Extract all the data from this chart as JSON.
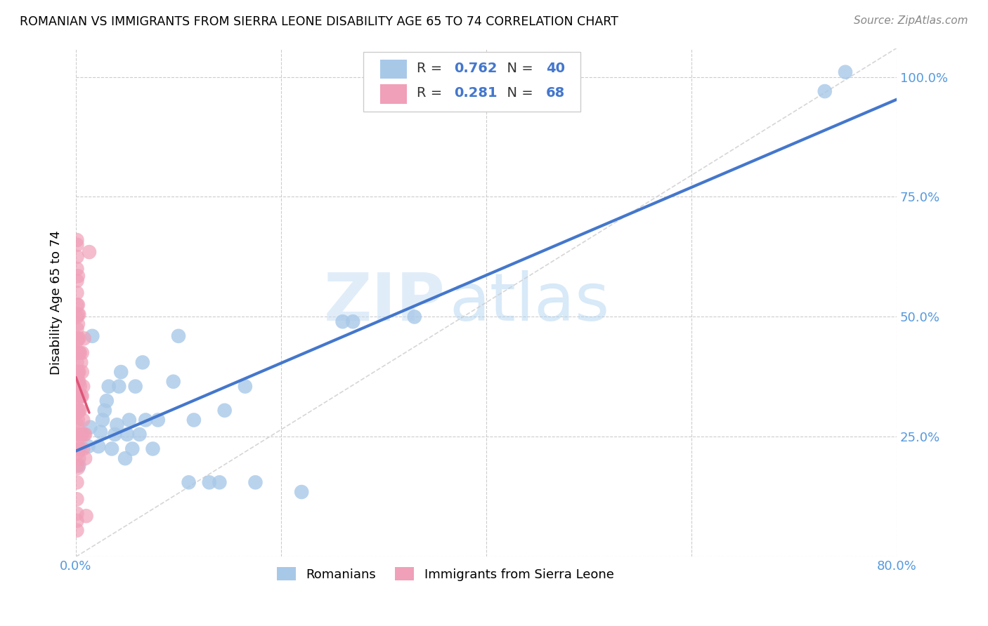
{
  "title": "ROMANIAN VS IMMIGRANTS FROM SIERRA LEONE DISABILITY AGE 65 TO 74 CORRELATION CHART",
  "source": "Source: ZipAtlas.com",
  "ylabel": "Disability Age 65 to 74",
  "xlim": [
    0.0,
    0.8
  ],
  "ylim": [
    0.0,
    1.06
  ],
  "blue_color": "#a8c8e8",
  "blue_line_color": "#4477cc",
  "pink_color": "#f0a0b8",
  "pink_line_color": "#dd5577",
  "blue_R": 0.762,
  "blue_N": 40,
  "pink_R": 0.281,
  "pink_N": 68,
  "watermark_zip": "ZIP",
  "watermark_atlas": "atlas",
  "legend_label_blue": "Romanians",
  "legend_label_pink": "Immigrants from Sierra Leone",
  "blue_points": [
    [
      0.003,
      0.19
    ],
    [
      0.012,
      0.23
    ],
    [
      0.014,
      0.27
    ],
    [
      0.016,
      0.46
    ],
    [
      0.022,
      0.23
    ],
    [
      0.024,
      0.26
    ],
    [
      0.026,
      0.285
    ],
    [
      0.028,
      0.305
    ],
    [
      0.03,
      0.325
    ],
    [
      0.032,
      0.355
    ],
    [
      0.035,
      0.225
    ],
    [
      0.038,
      0.255
    ],
    [
      0.04,
      0.275
    ],
    [
      0.042,
      0.355
    ],
    [
      0.044,
      0.385
    ],
    [
      0.048,
      0.205
    ],
    [
      0.05,
      0.255
    ],
    [
      0.052,
      0.285
    ],
    [
      0.055,
      0.225
    ],
    [
      0.058,
      0.355
    ],
    [
      0.062,
      0.255
    ],
    [
      0.065,
      0.405
    ],
    [
      0.068,
      0.285
    ],
    [
      0.075,
      0.225
    ],
    [
      0.08,
      0.285
    ],
    [
      0.095,
      0.365
    ],
    [
      0.1,
      0.46
    ],
    [
      0.11,
      0.155
    ],
    [
      0.115,
      0.285
    ],
    [
      0.13,
      0.155
    ],
    [
      0.14,
      0.155
    ],
    [
      0.145,
      0.305
    ],
    [
      0.165,
      0.355
    ],
    [
      0.175,
      0.155
    ],
    [
      0.22,
      0.135
    ],
    [
      0.26,
      0.49
    ],
    [
      0.27,
      0.49
    ],
    [
      0.33,
      0.5
    ],
    [
      0.73,
      0.97
    ],
    [
      0.75,
      1.01
    ]
  ],
  "pink_points": [
    [
      0.001,
      0.055
    ],
    [
      0.001,
      0.09
    ],
    [
      0.001,
      0.12
    ],
    [
      0.001,
      0.155
    ],
    [
      0.001,
      0.19
    ],
    [
      0.001,
      0.215
    ],
    [
      0.001,
      0.245
    ],
    [
      0.001,
      0.275
    ],
    [
      0.001,
      0.3
    ],
    [
      0.001,
      0.325
    ],
    [
      0.001,
      0.355
    ],
    [
      0.001,
      0.38
    ],
    [
      0.001,
      0.405
    ],
    [
      0.001,
      0.425
    ],
    [
      0.001,
      0.45
    ],
    [
      0.001,
      0.475
    ],
    [
      0.001,
      0.5
    ],
    [
      0.001,
      0.525
    ],
    [
      0.001,
      0.55
    ],
    [
      0.001,
      0.575
    ],
    [
      0.001,
      0.6
    ],
    [
      0.001,
      0.625
    ],
    [
      0.001,
      0.65
    ],
    [
      0.001,
      0.075
    ],
    [
      0.002,
      0.185
    ],
    [
      0.002,
      0.225
    ],
    [
      0.002,
      0.255
    ],
    [
      0.002,
      0.285
    ],
    [
      0.002,
      0.305
    ],
    [
      0.002,
      0.335
    ],
    [
      0.002,
      0.365
    ],
    [
      0.002,
      0.385
    ],
    [
      0.002,
      0.425
    ],
    [
      0.002,
      0.455
    ],
    [
      0.002,
      0.485
    ],
    [
      0.002,
      0.505
    ],
    [
      0.002,
      0.525
    ],
    [
      0.002,
      0.585
    ],
    [
      0.003,
      0.205
    ],
    [
      0.003,
      0.255
    ],
    [
      0.003,
      0.305
    ],
    [
      0.003,
      0.335
    ],
    [
      0.003,
      0.365
    ],
    [
      0.003,
      0.385
    ],
    [
      0.003,
      0.425
    ],
    [
      0.003,
      0.455
    ],
    [
      0.003,
      0.505
    ],
    [
      0.004,
      0.225
    ],
    [
      0.004,
      0.305
    ],
    [
      0.004,
      0.355
    ],
    [
      0.004,
      0.425
    ],
    [
      0.005,
      0.255
    ],
    [
      0.005,
      0.335
    ],
    [
      0.005,
      0.405
    ],
    [
      0.006,
      0.255
    ],
    [
      0.006,
      0.335
    ],
    [
      0.006,
      0.385
    ],
    [
      0.006,
      0.425
    ],
    [
      0.007,
      0.225
    ],
    [
      0.007,
      0.285
    ],
    [
      0.007,
      0.355
    ],
    [
      0.008,
      0.255
    ],
    [
      0.008,
      0.455
    ],
    [
      0.009,
      0.205
    ],
    [
      0.009,
      0.255
    ],
    [
      0.01,
      0.085
    ],
    [
      0.013,
      0.635
    ],
    [
      0.001,
      0.66
    ]
  ]
}
